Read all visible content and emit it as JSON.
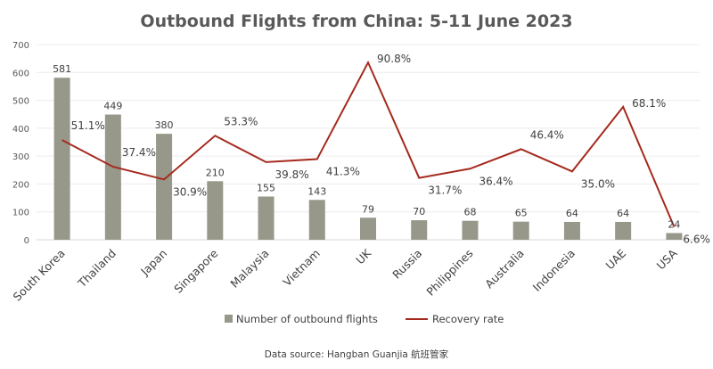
{
  "chart_data": {
    "type": "bar+line",
    "title": "Outbound Flights from China: 5-11 June 2023",
    "categories": [
      "South Korea",
      "Thailand",
      "Japan",
      "Singapore",
      "Malaysia",
      "Vietnam",
      "UK",
      "Russia",
      "Philippines",
      "Australia",
      "Indonesia",
      "UAE",
      "USA"
    ],
    "series": [
      {
        "name": "Number of outbound flights",
        "type": "bar",
        "color": "#97978a",
        "values": [
          581,
          449,
          380,
          210,
          155,
          143,
          79,
          70,
          68,
          65,
          64,
          64,
          24
        ]
      },
      {
        "name": "Recovery rate",
        "type": "line",
        "color": "#a52a1e",
        "values": [
          51.1,
          37.4,
          30.9,
          53.3,
          39.8,
          41.3,
          90.8,
          31.7,
          36.4,
          46.4,
          35.0,
          68.1,
          6.6
        ],
        "labels": [
          "51.1%",
          "37.4%",
          "30.9%",
          "53.3%",
          "39.8%",
          "41.3%",
          "90.8%",
          "31.7%",
          "36.4%",
          "46.4%",
          "35.0%",
          "68.1%",
          "6.6%"
        ]
      }
    ],
    "ylim": [
      0,
      700
    ],
    "yticks": [
      "0",
      "100",
      "200",
      "300",
      "400",
      "500",
      "600",
      "700"
    ],
    "secondary_ylim": [
      0,
      100
    ],
    "grid": true,
    "legend": "bottom",
    "source": "Data source: Hangban Guanjia 航班管家"
  }
}
